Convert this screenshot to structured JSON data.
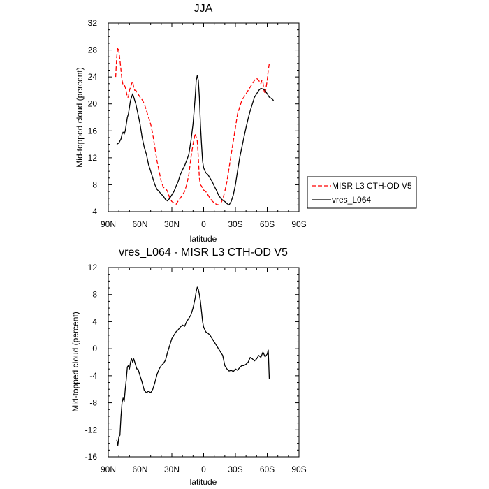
{
  "chart_data": [
    {
      "type": "line",
      "title": "JJA",
      "xlabel": "latitude",
      "ylabel": "Mid-topped cloud (percent)",
      "xlim": [
        90,
        -90
      ],
      "ylim": [
        4,
        32
      ],
      "x_ticks": [
        90,
        60,
        30,
        0,
        -30,
        -60,
        -90
      ],
      "x_tick_labels": [
        "90N",
        "60N",
        "30N",
        "0",
        "30S",
        "60S",
        "90S"
      ],
      "y_ticks": [
        4,
        8,
        12,
        16,
        20,
        24,
        28,
        32
      ],
      "y_tick_labels": [
        "4",
        "8",
        "12",
        "16",
        "20",
        "24",
        "28",
        "32"
      ],
      "grid": false,
      "legend": "outside-right",
      "series": [
        {
          "name": "MISR L3 CTH-OD V5",
          "color": "#ff0000",
          "dash": "dashed",
          "x": [
            83,
            82,
            81,
            80,
            79,
            78,
            77,
            76,
            75,
            74,
            73,
            72,
            71,
            70,
            68,
            67,
            66,
            65,
            64,
            62,
            60,
            58,
            56,
            54,
            52,
            50,
            48,
            46,
            44,
            42,
            40,
            38,
            36,
            34,
            32,
            30,
            28,
            26,
            24,
            22,
            20,
            18,
            16,
            14,
            12,
            10,
            8,
            6,
            5,
            4,
            3,
            2,
            1,
            0,
            -2,
            -4,
            -6,
            -8,
            -10,
            -12,
            -14,
            -16,
            -18,
            -20,
            -22,
            -24,
            -26,
            -28,
            -30,
            -32,
            -34,
            -36,
            -38,
            -40,
            -42,
            -44,
            -46,
            -48,
            -50,
            -52,
            -53,
            -54,
            -55,
            -56,
            -57,
            -58,
            -59,
            -60,
            -61,
            -62
          ],
          "y": [
            24,
            27,
            28.4,
            27.8,
            26.5,
            25,
            23.5,
            22.8,
            22.8,
            22.5,
            21.8,
            21,
            21,
            22,
            23,
            23.3,
            22.5,
            22,
            22,
            21.5,
            21,
            20.6,
            20,
            19,
            18,
            17,
            15.5,
            13.5,
            11.5,
            10,
            8.5,
            7.6,
            7.5,
            7,
            6,
            5.5,
            5.3,
            5.1,
            5.6,
            6,
            6.5,
            7,
            8,
            9.5,
            12,
            14,
            15.6,
            14.5,
            12,
            9,
            8,
            7.8,
            7.5,
            7.2,
            7,
            6.5,
            6,
            5.6,
            5.3,
            5.1,
            5,
            5.2,
            5.8,
            7,
            8.5,
            10.5,
            12.5,
            14.5,
            16.5,
            18.5,
            19.5,
            20.5,
            21,
            21.5,
            22,
            22.5,
            23,
            23.5,
            23.8,
            23.5,
            23.2,
            23,
            23.5,
            23.2,
            22,
            21.5,
            22.5,
            23.5,
            25,
            26
          ]
        },
        {
          "name": "vres_L064",
          "color": "#000000",
          "dash": "solid",
          "x": [
            82,
            80,
            78,
            77,
            76,
            75,
            74,
            73,
            72,
            71,
            70,
            69,
            68,
            67,
            66,
            65,
            64,
            62,
            60,
            58,
            56,
            54,
            52,
            50,
            48,
            46,
            44,
            42,
            40,
            38,
            36,
            34,
            32,
            30,
            28,
            26,
            24,
            22,
            20,
            18,
            16,
            14,
            12,
            10,
            9,
            8,
            7,
            6,
            5,
            4,
            3,
            2,
            1,
            0,
            -2,
            -4,
            -6,
            -8,
            -10,
            -12,
            -14,
            -16,
            -18,
            -20,
            -22,
            -24,
            -26,
            -28,
            -30,
            -32,
            -34,
            -36,
            -38,
            -40,
            -42,
            -44,
            -46,
            -48,
            -50,
            -52,
            -54,
            -56,
            -58,
            -60,
            -62,
            -64,
            -66
          ],
          "y": [
            14,
            14.2,
            14.8,
            15.5,
            15.8,
            15.5,
            16,
            17,
            18,
            18.5,
            19.5,
            20.5,
            21,
            21.5,
            21,
            20.5,
            20,
            18.5,
            17,
            15,
            13.5,
            12.5,
            11,
            10,
            9,
            8,
            7.3,
            7,
            6.6,
            6.3,
            5.8,
            5.6,
            6,
            6.5,
            7,
            7.8,
            8.5,
            9.5,
            10.2,
            10.8,
            11.6,
            12.5,
            14.5,
            17,
            19,
            21,
            23.5,
            24.2,
            23.5,
            21,
            17,
            14,
            11.5,
            10.5,
            9.8,
            9.5,
            9,
            8.5,
            7.8,
            7.2,
            6.5,
            6,
            5.7,
            5.5,
            5.2,
            5,
            5.5,
            6.5,
            8,
            10,
            12,
            13.5,
            15,
            16.5,
            17.8,
            19,
            20,
            21,
            21.5,
            22,
            22.3,
            22.2,
            22,
            21.5,
            21,
            20.8,
            20.5
          ]
        }
      ]
    },
    {
      "type": "line",
      "title": "vres_L064 - MISR L3 CTH-OD V5",
      "xlabel": "latitude",
      "ylabel": "Mid-topped cloud (percent)",
      "xlim": [
        90,
        -90
      ],
      "ylim": [
        -16,
        12
      ],
      "x_ticks": [
        90,
        60,
        30,
        0,
        -30,
        -60,
        -90
      ],
      "x_tick_labels": [
        "90N",
        "60N",
        "30N",
        "0",
        "30S",
        "60S",
        "90S"
      ],
      "y_ticks": [
        -16,
        -12,
        -8,
        -4,
        0,
        4,
        8,
        12
      ],
      "y_tick_labels": [
        "-16",
        "-12",
        "-8",
        "-4",
        "0",
        "4",
        "8",
        "12"
      ],
      "grid": false,
      "series": [
        {
          "color": "#000000",
          "dash": "solid",
          "x": [
            82,
            81,
            80,
            79,
            78,
            77,
            76,
            75,
            74,
            73,
            72,
            71,
            70,
            69,
            68,
            67,
            66,
            65,
            64,
            63,
            62,
            61,
            60,
            58,
            56,
            54,
            52,
            50,
            48,
            46,
            44,
            42,
            40,
            38,
            36,
            34,
            32,
            30,
            28,
            26,
            24,
            22,
            20,
            18,
            16,
            14,
            12,
            10,
            8,
            7,
            6,
            5,
            4,
            3,
            2,
            1,
            0,
            -2,
            -4,
            -6,
            -8,
            -10,
            -12,
            -14,
            -16,
            -18,
            -20,
            -22,
            -24,
            -26,
            -28,
            -30,
            -32,
            -34,
            -36,
            -38,
            -40,
            -42,
            -44,
            -46,
            -48,
            -50,
            -52,
            -54,
            -56,
            -58,
            -60,
            -61,
            -62
          ],
          "y": [
            -13.5,
            -14.3,
            -13,
            -12.8,
            -10,
            -8,
            -7.3,
            -7.8,
            -6,
            -4.5,
            -2.7,
            -2.5,
            -3,
            -2,
            -1.5,
            -2,
            -1.5,
            -2,
            -2.5,
            -3,
            -3,
            -3.5,
            -4,
            -5,
            -6.2,
            -6.5,
            -6.3,
            -6.5,
            -6,
            -5,
            -3.8,
            -3,
            -2.5,
            -2.2,
            -1.7,
            -0.5,
            0.5,
            1.5,
            2,
            2.5,
            2.8,
            3.2,
            3.5,
            3.3,
            4,
            4.5,
            5,
            6,
            7.5,
            8.5,
            9.1,
            8.8,
            8,
            7,
            5.5,
            4,
            3.2,
            2.5,
            2.3,
            2,
            1.5,
            1,
            0.5,
            0,
            -0.5,
            -1,
            -2.5,
            -3,
            -3.3,
            -3.2,
            -3.4,
            -3,
            -3.2,
            -2.8,
            -2.5,
            -2.5,
            -2.3,
            -2,
            -1.3,
            -1.5,
            -1.8,
            -1.5,
            -1,
            -1.3,
            -0.5,
            -1.2,
            -0.8,
            -0.2,
            -4.5
          ]
        }
      ]
    }
  ]
}
